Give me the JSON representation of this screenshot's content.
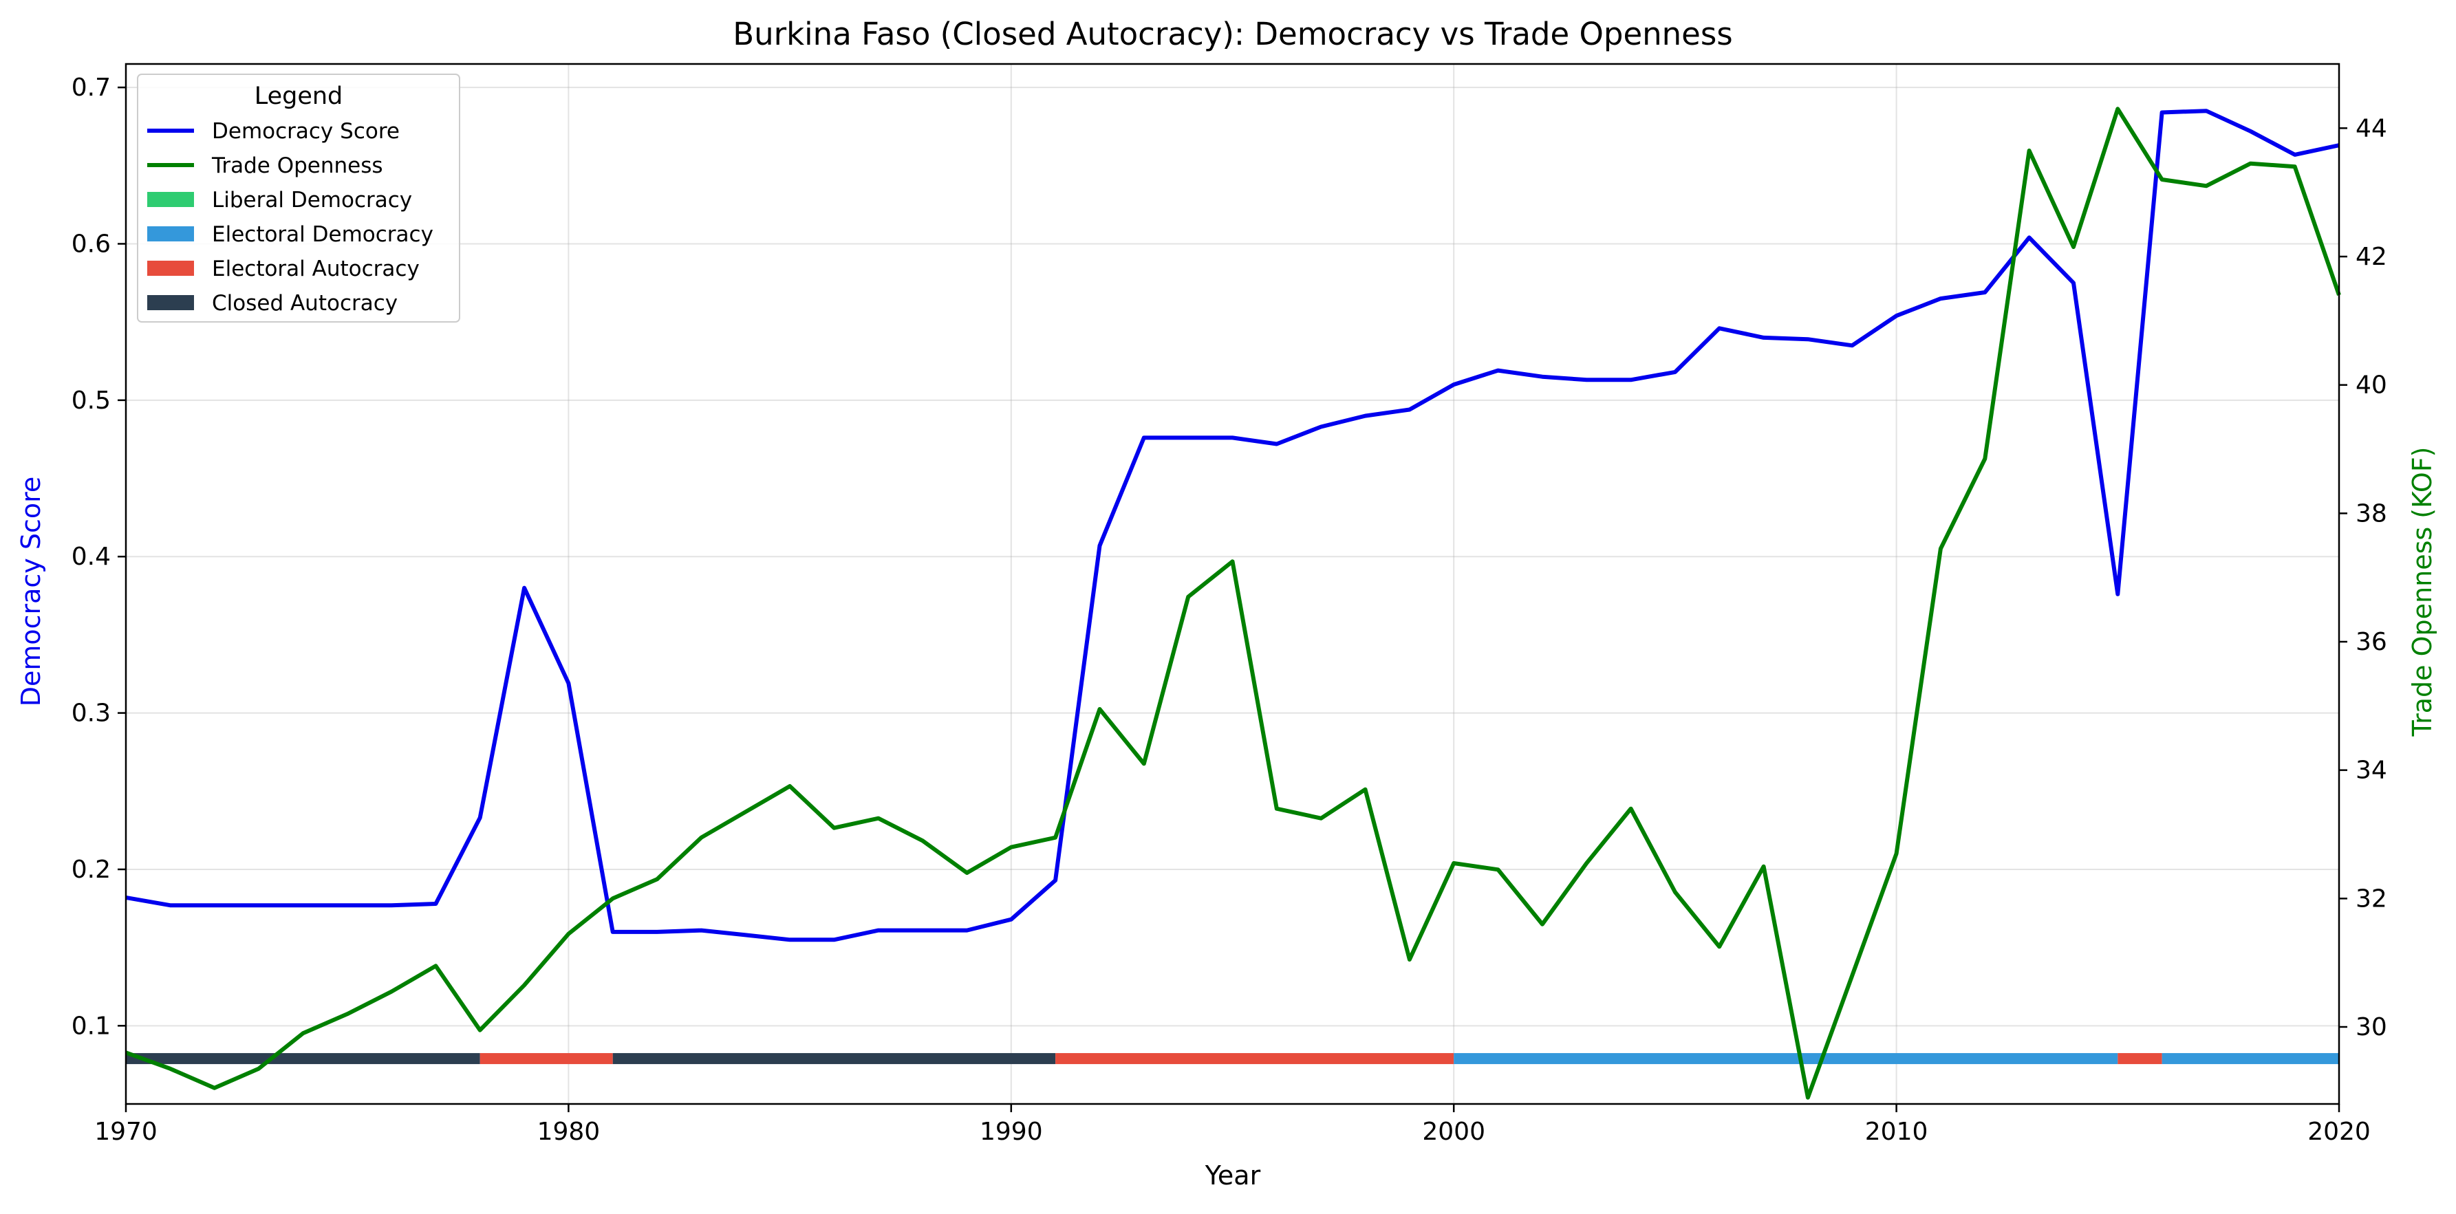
{
  "chart_data": {
    "type": "line",
    "title": "Burkina Faso (Closed Autocracy): Democracy vs Trade Openness",
    "xlabel": "Year",
    "ylabel_left": "Democracy Score",
    "ylabel_right": "Trade Openness (KOF)",
    "xlim": [
      1970,
      2020
    ],
    "ylim_left": [
      0.05,
      0.715
    ],
    "ylim_right": [
      28.8,
      45.0
    ],
    "x_ticks": [
      1970,
      1980,
      1990,
      2000,
      2010,
      2020
    ],
    "y_left_ticks": [
      0.1,
      0.2,
      0.3,
      0.4,
      0.5,
      0.6,
      0.7
    ],
    "y_right_ticks": [
      30,
      32,
      34,
      36,
      38,
      40,
      42,
      44
    ],
    "grid": true,
    "legend_placement": "top-left",
    "legend_title": "Legend",
    "x": [
      1970,
      1971,
      1972,
      1973,
      1974,
      1975,
      1976,
      1977,
      1978,
      1979,
      1980,
      1981,
      1982,
      1983,
      1984,
      1985,
      1986,
      1987,
      1988,
      1989,
      1990,
      1991,
      1992,
      1993,
      1994,
      1995,
      1996,
      1997,
      1998,
      1999,
      2000,
      2001,
      2002,
      2003,
      2004,
      2005,
      2006,
      2007,
      2008,
      2009,
      2010,
      2011,
      2012,
      2013,
      2014,
      2015,
      2016,
      2017,
      2018,
      2019,
      2020
    ],
    "series": [
      {
        "name": "Democracy Score",
        "axis": "left",
        "color": "#0000ee",
        "values": [
          0.182,
          0.177,
          0.177,
          0.177,
          0.177,
          0.177,
          0.177,
          0.178,
          0.233,
          0.38,
          0.319,
          0.16,
          0.16,
          0.161,
          0.158,
          0.155,
          0.155,
          0.161,
          0.161,
          0.161,
          0.168,
          0.193,
          0.407,
          0.476,
          0.476,
          0.476,
          0.472,
          0.483,
          0.49,
          0.494,
          0.51,
          0.519,
          0.515,
          0.513,
          0.513,
          0.518,
          0.546,
          0.54,
          0.539,
          0.535,
          0.554,
          0.565,
          0.569,
          0.604,
          0.575,
          0.376,
          0.684,
          0.685,
          0.672,
          0.657,
          0.663
        ]
      },
      {
        "name": "Trade Openness",
        "axis": "right",
        "color": "#008000",
        "values": [
          29.6,
          29.35,
          29.05,
          29.35,
          29.9,
          30.2,
          30.55,
          30.95,
          29.95,
          30.65,
          31.45,
          32.0,
          32.3,
          32.95,
          33.35,
          33.75,
          33.1,
          33.25,
          32.9,
          32.4,
          32.8,
          32.95,
          34.95,
          34.1,
          36.7,
          37.25,
          33.4,
          33.25,
          33.7,
          31.05,
          32.55,
          32.45,
          31.6,
          32.55,
          33.4,
          32.1,
          31.25,
          32.5,
          28.9,
          30.8,
          32.7,
          37.45,
          38.85,
          43.65,
          42.15,
          44.3,
          43.2,
          43.1,
          43.45,
          43.4,
          41.4
        ]
      }
    ],
    "regime_segments": [
      {
        "start": 1970,
        "end": 1978,
        "regime": "Closed Autocracy"
      },
      {
        "start": 1978,
        "end": 1981,
        "regime": "Electoral Autocracy"
      },
      {
        "start": 1981,
        "end": 1991,
        "regime": "Closed Autocracy"
      },
      {
        "start": 1991,
        "end": 2000,
        "regime": "Electoral Autocracy"
      },
      {
        "start": 2000,
        "end": 2015,
        "regime": "Electoral Democracy"
      },
      {
        "start": 2015,
        "end": 2016,
        "regime": "Electoral Autocracy"
      },
      {
        "start": 2016,
        "end": 2020,
        "regime": "Electoral Democracy"
      }
    ],
    "regime_bar_level": 0.079,
    "legend": [
      {
        "label": "Democracy Score",
        "kind": "line",
        "color": "#0000ee"
      },
      {
        "label": "Trade Openness",
        "kind": "line",
        "color": "#008000"
      },
      {
        "label": "Liberal Democracy",
        "kind": "patch",
        "color": "#2ecc71"
      },
      {
        "label": "Electoral Democracy",
        "kind": "patch",
        "color": "#3498db"
      },
      {
        "label": "Electoral Autocracy",
        "kind": "patch",
        "color": "#e74c3c"
      },
      {
        "label": "Closed Autocracy",
        "kind": "patch",
        "color": "#2c3e50"
      }
    ],
    "regime_colors": {
      "Liberal Democracy": "#2ecc71",
      "Electoral Democracy": "#3498db",
      "Electoral Autocracy": "#e74c3c",
      "Closed Autocracy": "#2c3e50"
    },
    "left_axis_color": "#0000ee",
    "right_axis_color": "#008000"
  }
}
